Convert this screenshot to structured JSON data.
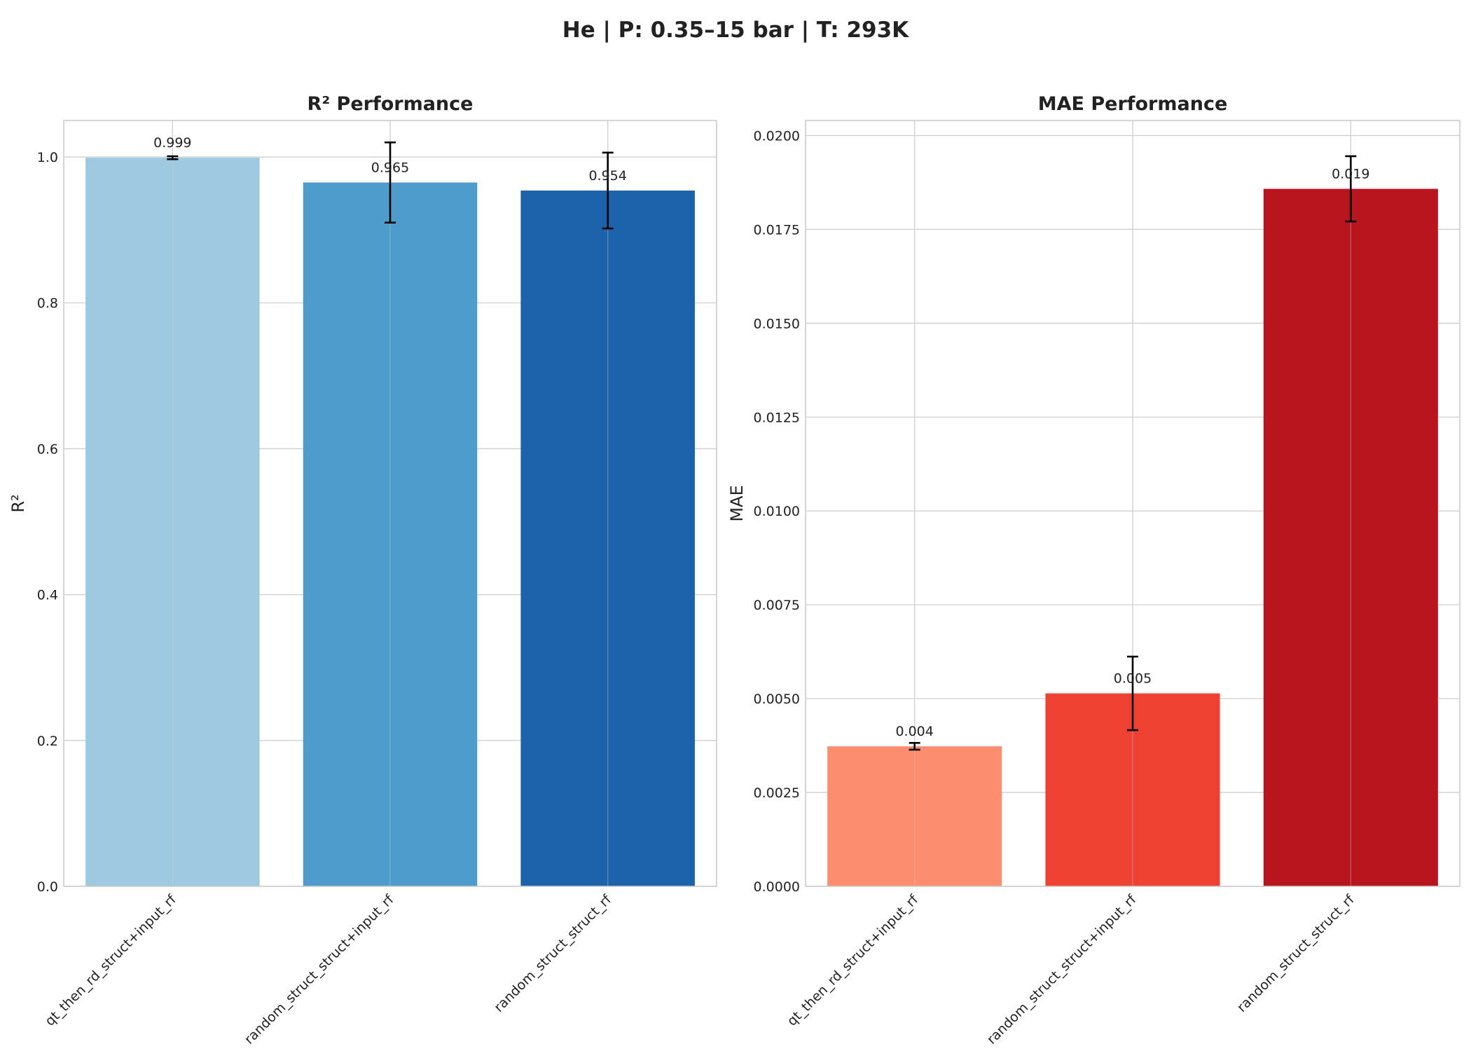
{
  "figure": {
    "title": "He | P: 0.35–15 bar | T: 293K"
  },
  "chart_data": [
    {
      "type": "bar",
      "title": "R² Performance",
      "xlabel": "",
      "ylabel": "R²",
      "categories": [
        "qt_then_rd_struct+input_rf",
        "random_struct_struct+input_rf",
        "random_struct_struct_rf"
      ],
      "values": [
        0.999,
        0.965,
        0.954
      ],
      "error": [
        0.002,
        0.055,
        0.052
      ],
      "value_labels": [
        "0.999",
        "0.965",
        "0.954"
      ],
      "colors": [
        "#9ecae1",
        "#4d9ccc",
        "#1c63ab"
      ],
      "ylim": [
        0,
        1.05
      ],
      "yticks": [
        0.0,
        0.2,
        0.4,
        0.6,
        0.8,
        1.0
      ],
      "ytick_labels": [
        "0.0",
        "0.2",
        "0.4",
        "0.6",
        "0.8",
        "1.0"
      ],
      "grid": true
    },
    {
      "type": "bar",
      "title": "MAE Performance",
      "xlabel": "",
      "ylabel": "MAE",
      "categories": [
        "qt_then_rd_struct+input_rf",
        "random_struct_struct+input_rf",
        "random_struct_struct_rf"
      ],
      "values": [
        0.00373,
        0.00514,
        0.01858
      ],
      "error": [
        9e-05,
        0.00098,
        0.00087
      ],
      "value_labels": [
        "0.004",
        "0.005",
        "0.019"
      ],
      "colors": [
        "#fc8d6f",
        "#ef4131",
        "#b9151f"
      ],
      "ylim": [
        0,
        0.0204
      ],
      "yticks": [
        0.0,
        0.0025,
        0.005,
        0.0075,
        0.01,
        0.0125,
        0.015,
        0.0175,
        0.02
      ],
      "ytick_labels": [
        "0.0000",
        "0.0025",
        "0.0050",
        "0.0075",
        "0.0100",
        "0.0125",
        "0.0150",
        "0.0175",
        "0.0200"
      ],
      "grid": true
    }
  ]
}
